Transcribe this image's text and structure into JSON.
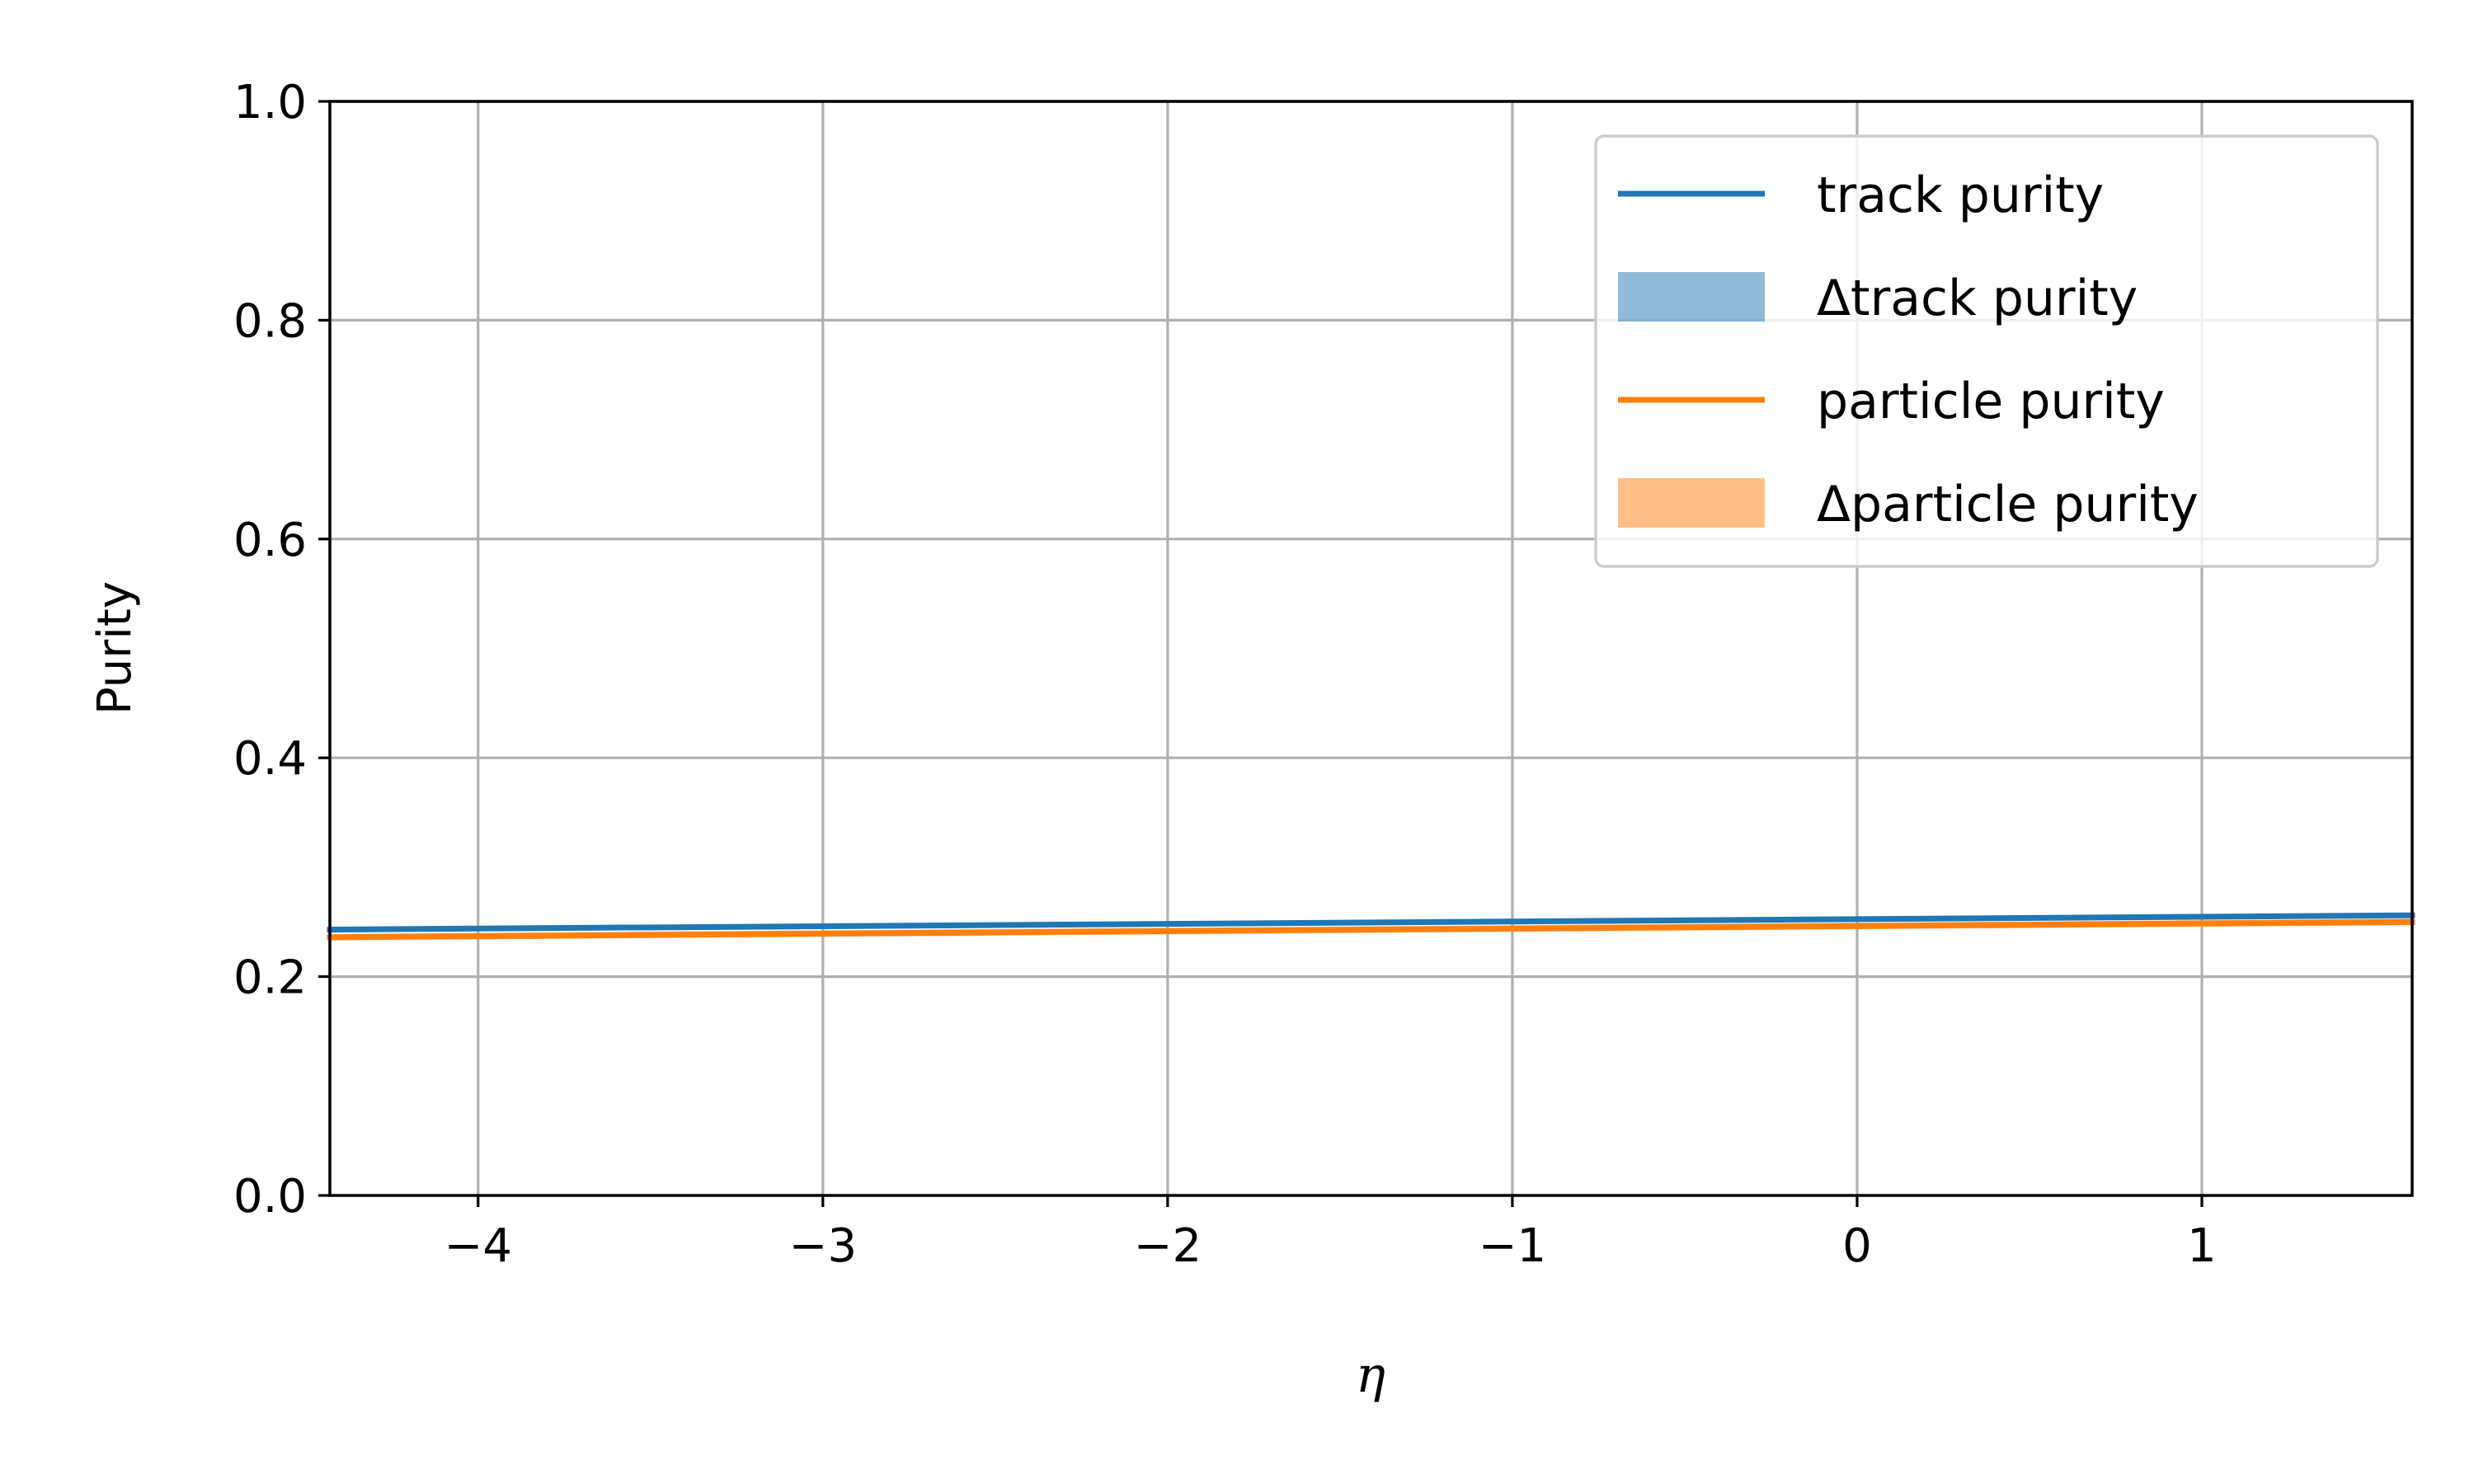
{
  "chart_data": {
    "type": "line",
    "xlabel": "η",
    "ylabel": "Purity",
    "xlim": [
      -4.43,
      1.61
    ],
    "ylim": [
      0.0,
      1.0
    ],
    "grid": true,
    "legend_position": "top-right",
    "x_ticks": [
      -4,
      -3,
      -2,
      -1,
      0,
      1
    ],
    "x_tick_labels": [
      "−4",
      "−3",
      "−2",
      "−1",
      "0",
      "1"
    ],
    "y_ticks": [
      0.0,
      0.2,
      0.4,
      0.6,
      0.8,
      1.0
    ],
    "y_tick_labels": [
      "0.0",
      "0.2",
      "0.4",
      "0.6",
      "0.8",
      "1.0"
    ],
    "series": [
      {
        "name": "track purity",
        "kind": "line",
        "color": "#1f77b4",
        "x": [
          -4.43,
          1.61
        ],
        "y": [
          0.243,
          0.256
        ]
      },
      {
        "name": "Δtrack purity",
        "kind": "band",
        "color": "#1f77b4",
        "x": [
          -4.43,
          1.61
        ],
        "y_low": [
          0.241,
          0.254
        ],
        "y_high": [
          0.245,
          0.258
        ]
      },
      {
        "name": "particle purity",
        "kind": "line",
        "color": "#ff7f0e",
        "x": [
          -4.43,
          1.61
        ],
        "y": [
          0.236,
          0.25
        ]
      },
      {
        "name": "Δparticle purity",
        "kind": "band",
        "color": "#ff7f0e",
        "x": [
          -4.43,
          1.61
        ],
        "y_low": [
          0.233,
          0.247
        ],
        "y_high": [
          0.239,
          0.253
        ]
      }
    ]
  }
}
